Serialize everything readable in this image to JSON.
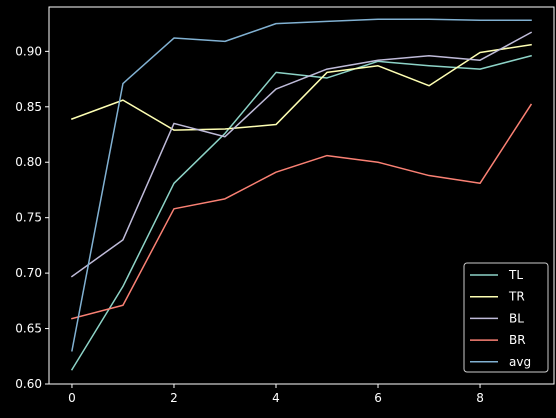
{
  "chart_data": {
    "type": "line",
    "title": "",
    "xlabel": "",
    "ylabel": "",
    "xlim": [
      -0.45,
      9.45
    ],
    "ylim": [
      0.6,
      0.94
    ],
    "x_ticks": [
      "0",
      "2",
      "4",
      "6",
      "8"
    ],
    "y_ticks": [
      "0.60",
      "0.65",
      "0.70",
      "0.75",
      "0.80",
      "0.85",
      "0.90"
    ],
    "grid": false,
    "legend_position": "lower-right",
    "background": "#000000",
    "x": [
      0,
      1,
      2,
      3,
      4,
      5,
      6,
      7,
      8,
      9
    ],
    "series": [
      {
        "name": "TL",
        "color": "#8dd3c7",
        "values": [
          0.613,
          0.688,
          0.781,
          0.826,
          0.881,
          0.876,
          0.891,
          0.887,
          0.884,
          0.896
        ]
      },
      {
        "name": "TR",
        "color": "#feffb3",
        "values": [
          0.839,
          0.856,
          0.829,
          0.83,
          0.834,
          0.881,
          0.887,
          0.869,
          0.899,
          0.906
        ]
      },
      {
        "name": "BL",
        "color": "#bfbbd9",
        "values": [
          0.697,
          0.73,
          0.835,
          0.823,
          0.866,
          0.884,
          0.892,
          0.896,
          0.892,
          0.917
        ]
      },
      {
        "name": "BR",
        "color": "#fa8174",
        "values": [
          0.659,
          0.671,
          0.758,
          0.767,
          0.791,
          0.806,
          0.8,
          0.788,
          0.781,
          0.852
        ]
      },
      {
        "name": "avg",
        "color": "#81b1d2",
        "values": [
          0.63,
          0.871,
          0.912,
          0.909,
          0.925,
          0.927,
          0.929,
          0.929,
          0.928,
          0.928
        ]
      }
    ]
  }
}
